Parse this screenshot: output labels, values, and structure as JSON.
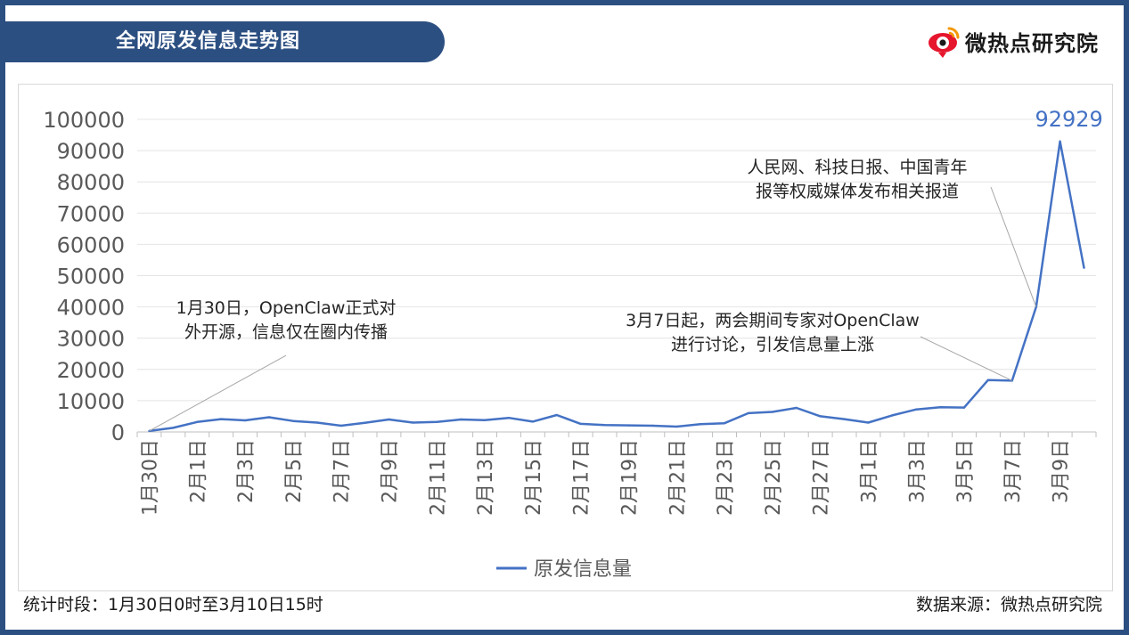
{
  "header": {
    "title": "全网原发信息走势图",
    "brand_name": "微热点研究院",
    "brand_icon": "weibo-eye-logo-icon",
    "brand_color": "#e6162d"
  },
  "footer": {
    "period": "统计时段：1月30日0时至3月10日15时",
    "source": "数据来源：微热点研究院"
  },
  "chart_data": {
    "type": "line",
    "title": "全网原发信息走势图",
    "xlabel": "",
    "ylabel": "",
    "ylim": [
      0,
      100000
    ],
    "yticks": [
      0,
      10000,
      20000,
      30000,
      40000,
      50000,
      60000,
      70000,
      80000,
      90000,
      100000
    ],
    "grid": true,
    "legend_position": "bottom",
    "line_color": "#4472c4",
    "x": [
      "1月30日",
      "1月31日",
      "2月1日",
      "2月2日",
      "2月3日",
      "2月4日",
      "2月5日",
      "2月6日",
      "2月7日",
      "2月8日",
      "2月9日",
      "2月10日",
      "2月11日",
      "2月12日",
      "2月13日",
      "2月14日",
      "2月15日",
      "2月16日",
      "2月17日",
      "2月18日",
      "2月19日",
      "2月20日",
      "2月21日",
      "2月22日",
      "2月23日",
      "2月24日",
      "2月25日",
      "2月26日",
      "2月27日",
      "2月28日",
      "3月1日",
      "3月2日",
      "3月3日",
      "3月4日",
      "3月5日",
      "3月6日",
      "3月7日",
      "3月8日",
      "3月9日",
      "3月10日"
    ],
    "x_tick_labels": [
      "1月30日",
      "2月1日",
      "2月3日",
      "2月5日",
      "2月7日",
      "2月9日",
      "2月11日",
      "2月13日",
      "2月15日",
      "2月17日",
      "2月19日",
      "2月21日",
      "2月23日",
      "2月25日",
      "2月27日",
      "3月1日",
      "3月3日",
      "3月5日",
      "3月7日",
      "3月9日"
    ],
    "series": [
      {
        "name": "原发信息量",
        "values": [
          300,
          1300,
          3200,
          4100,
          3700,
          4700,
          3500,
          3000,
          2000,
          2900,
          4000,
          3000,
          3200,
          4000,
          3800,
          4500,
          3300,
          5400,
          2600,
          2200,
          2100,
          2000,
          1700,
          2500,
          2800,
          6000,
          6400,
          7700,
          5000,
          4100,
          3000,
          5300,
          7200,
          7900,
          7800,
          16600,
          16400,
          40000,
          92929,
          52500
        ]
      }
    ],
    "peak_label": "92929",
    "annotations": [
      {
        "lines": [
          "1月30日，OpenClaw正式对",
          "外开源，信息仅在圈内传播"
        ],
        "target_index": 0
      },
      {
        "lines": [
          "3月7日起，两会期间专家对OpenClaw",
          "进行讨论，引发信息量上涨"
        ],
        "target_index": 36
      },
      {
        "lines": [
          "人民网、科技日报、中国青年",
          "报等权威媒体发布相关报道"
        ],
        "target_index": 37
      }
    ]
  }
}
